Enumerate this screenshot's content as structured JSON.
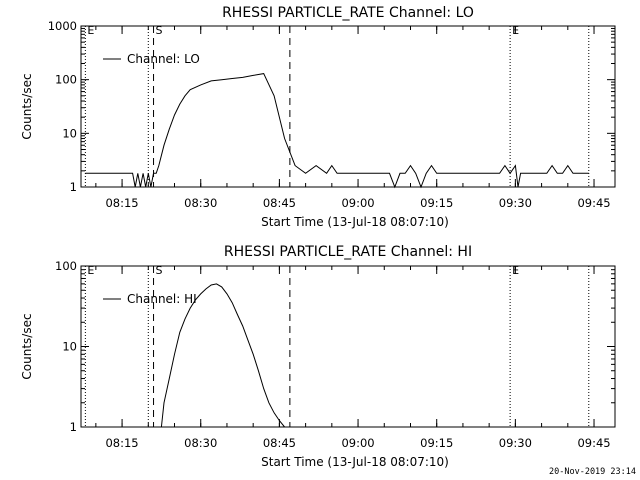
{
  "chart_data": [
    {
      "type": "line",
      "title": "RHESSI PARTICLE_RATE Channel: LO",
      "xlabel": "Start Time (13-Jul-18 08:07:10)",
      "ylabel": "Counts/sec",
      "yscale": "log",
      "ylim": [
        1,
        1000
      ],
      "xlim": [
        "08:07",
        "09:49"
      ],
      "ytick_labels": [
        "1",
        "10",
        "100",
        "1000"
      ],
      "xtick_labels": [
        "08:15",
        "08:30",
        "08:45",
        "09:00",
        "09:15",
        "09:30",
        "09:45"
      ],
      "xtick_minutes": [
        15,
        30,
        45,
        60,
        75,
        90,
        105
      ],
      "legend": "top-left",
      "series": [
        {
          "name": "Channel: LO",
          "x_minutes": [
            8,
            17,
            17.5,
            18,
            18.5,
            19,
            19.5,
            20,
            20.5,
            21,
            21.5,
            22,
            23,
            24,
            25,
            26,
            27,
            28,
            30,
            32,
            34,
            36,
            38,
            40,
            42,
            44,
            46,
            48,
            50,
            52,
            54,
            55,
            56,
            57,
            58,
            59,
            60,
            61,
            62,
            63,
            64,
            65,
            66,
            67,
            68,
            69,
            70,
            71,
            72,
            73,
            74,
            75,
            76,
            77,
            78,
            79,
            80,
            81,
            82,
            83,
            84,
            85,
            86,
            87,
            88,
            89,
            90,
            90.5,
            91,
            92,
            93,
            94,
            95,
            96,
            97,
            98,
            99,
            100,
            101,
            102,
            103,
            104
          ],
          "y": [
            1.8,
            1.8,
            1,
            1.8,
            1,
            1.8,
            1,
            1.8,
            1,
            1.8,
            1.8,
            2.5,
            6,
            12,
            22,
            35,
            50,
            65,
            80,
            95,
            100,
            105,
            110,
            120,
            130,
            50,
            8,
            2.5,
            1.8,
            2.5,
            1.8,
            2.5,
            1.8,
            1.8,
            1.8,
            1.8,
            1.8,
            1.8,
            1.8,
            1.8,
            1.8,
            1.8,
            1.8,
            1,
            1.8,
            1.8,
            2.5,
            1.8,
            1,
            1.8,
            2.5,
            1.8,
            1.8,
            1.8,
            1.8,
            1.8,
            1.8,
            1.8,
            1.8,
            1.8,
            1.8,
            1.8,
            1.8,
            1.8,
            2.5,
            1.8,
            2.5,
            1,
            1.8,
            1.8,
            1.8,
            1.8,
            1.8,
            1.8,
            2.5,
            1.8,
            1.8,
            2.5,
            1.8,
            1.8,
            1.8,
            1.8
          ]
        }
      ],
      "markers": [
        {
          "label": "E",
          "minute": 8,
          "style": "dotted"
        },
        {
          "label": "",
          "minute": 20,
          "style": "dotted"
        },
        {
          "label": "S",
          "minute": 21,
          "style": "dashed"
        },
        {
          "label": "",
          "minute": 47,
          "style": "dashed"
        },
        {
          "label": "E",
          "minute": 89,
          "style": "dotted"
        },
        {
          "label": "",
          "minute": 104,
          "style": "dotted"
        }
      ]
    },
    {
      "type": "line",
      "title": "RHESSI PARTICLE_RATE Channel: HI",
      "xlabel": "Start Time (13-Jul-18 08:07:10)",
      "ylabel": "Counts/sec",
      "yscale": "log",
      "ylim": [
        1,
        100
      ],
      "xlim": [
        "08:07",
        "09:49"
      ],
      "ytick_labels": [
        "1",
        "10",
        "100"
      ],
      "xtick_labels": [
        "08:15",
        "08:30",
        "08:45",
        "09:00",
        "09:15",
        "09:30",
        "09:45"
      ],
      "xtick_minutes": [
        15,
        30,
        45,
        60,
        75,
        90,
        105
      ],
      "legend": "top-left",
      "series": [
        {
          "name": "Channel: HI",
          "x_minutes": [
            22.5,
            23,
            24,
            25,
            26,
            27,
            28,
            29,
            30,
            31,
            32,
            33,
            34,
            35,
            36,
            37,
            38,
            39,
            40,
            41,
            42,
            43,
            44,
            45,
            46
          ],
          "y": [
            1,
            2,
            4,
            8,
            15,
            22,
            30,
            38,
            45,
            52,
            58,
            60,
            55,
            45,
            35,
            25,
            18,
            12,
            8,
            5,
            3,
            2,
            1.5,
            1.2,
            1
          ]
        }
      ],
      "markers": [
        {
          "label": "E",
          "minute": 8,
          "style": "dotted"
        },
        {
          "label": "",
          "minute": 20,
          "style": "dotted"
        },
        {
          "label": "S",
          "minute": 21,
          "style": "dashed"
        },
        {
          "label": "",
          "minute": 47,
          "style": "dashed"
        },
        {
          "label": "E",
          "minute": 89,
          "style": "dotted"
        },
        {
          "label": "",
          "minute": 104,
          "style": "dotted"
        }
      ]
    }
  ],
  "timestamp": "20-Nov-2019 23:14"
}
